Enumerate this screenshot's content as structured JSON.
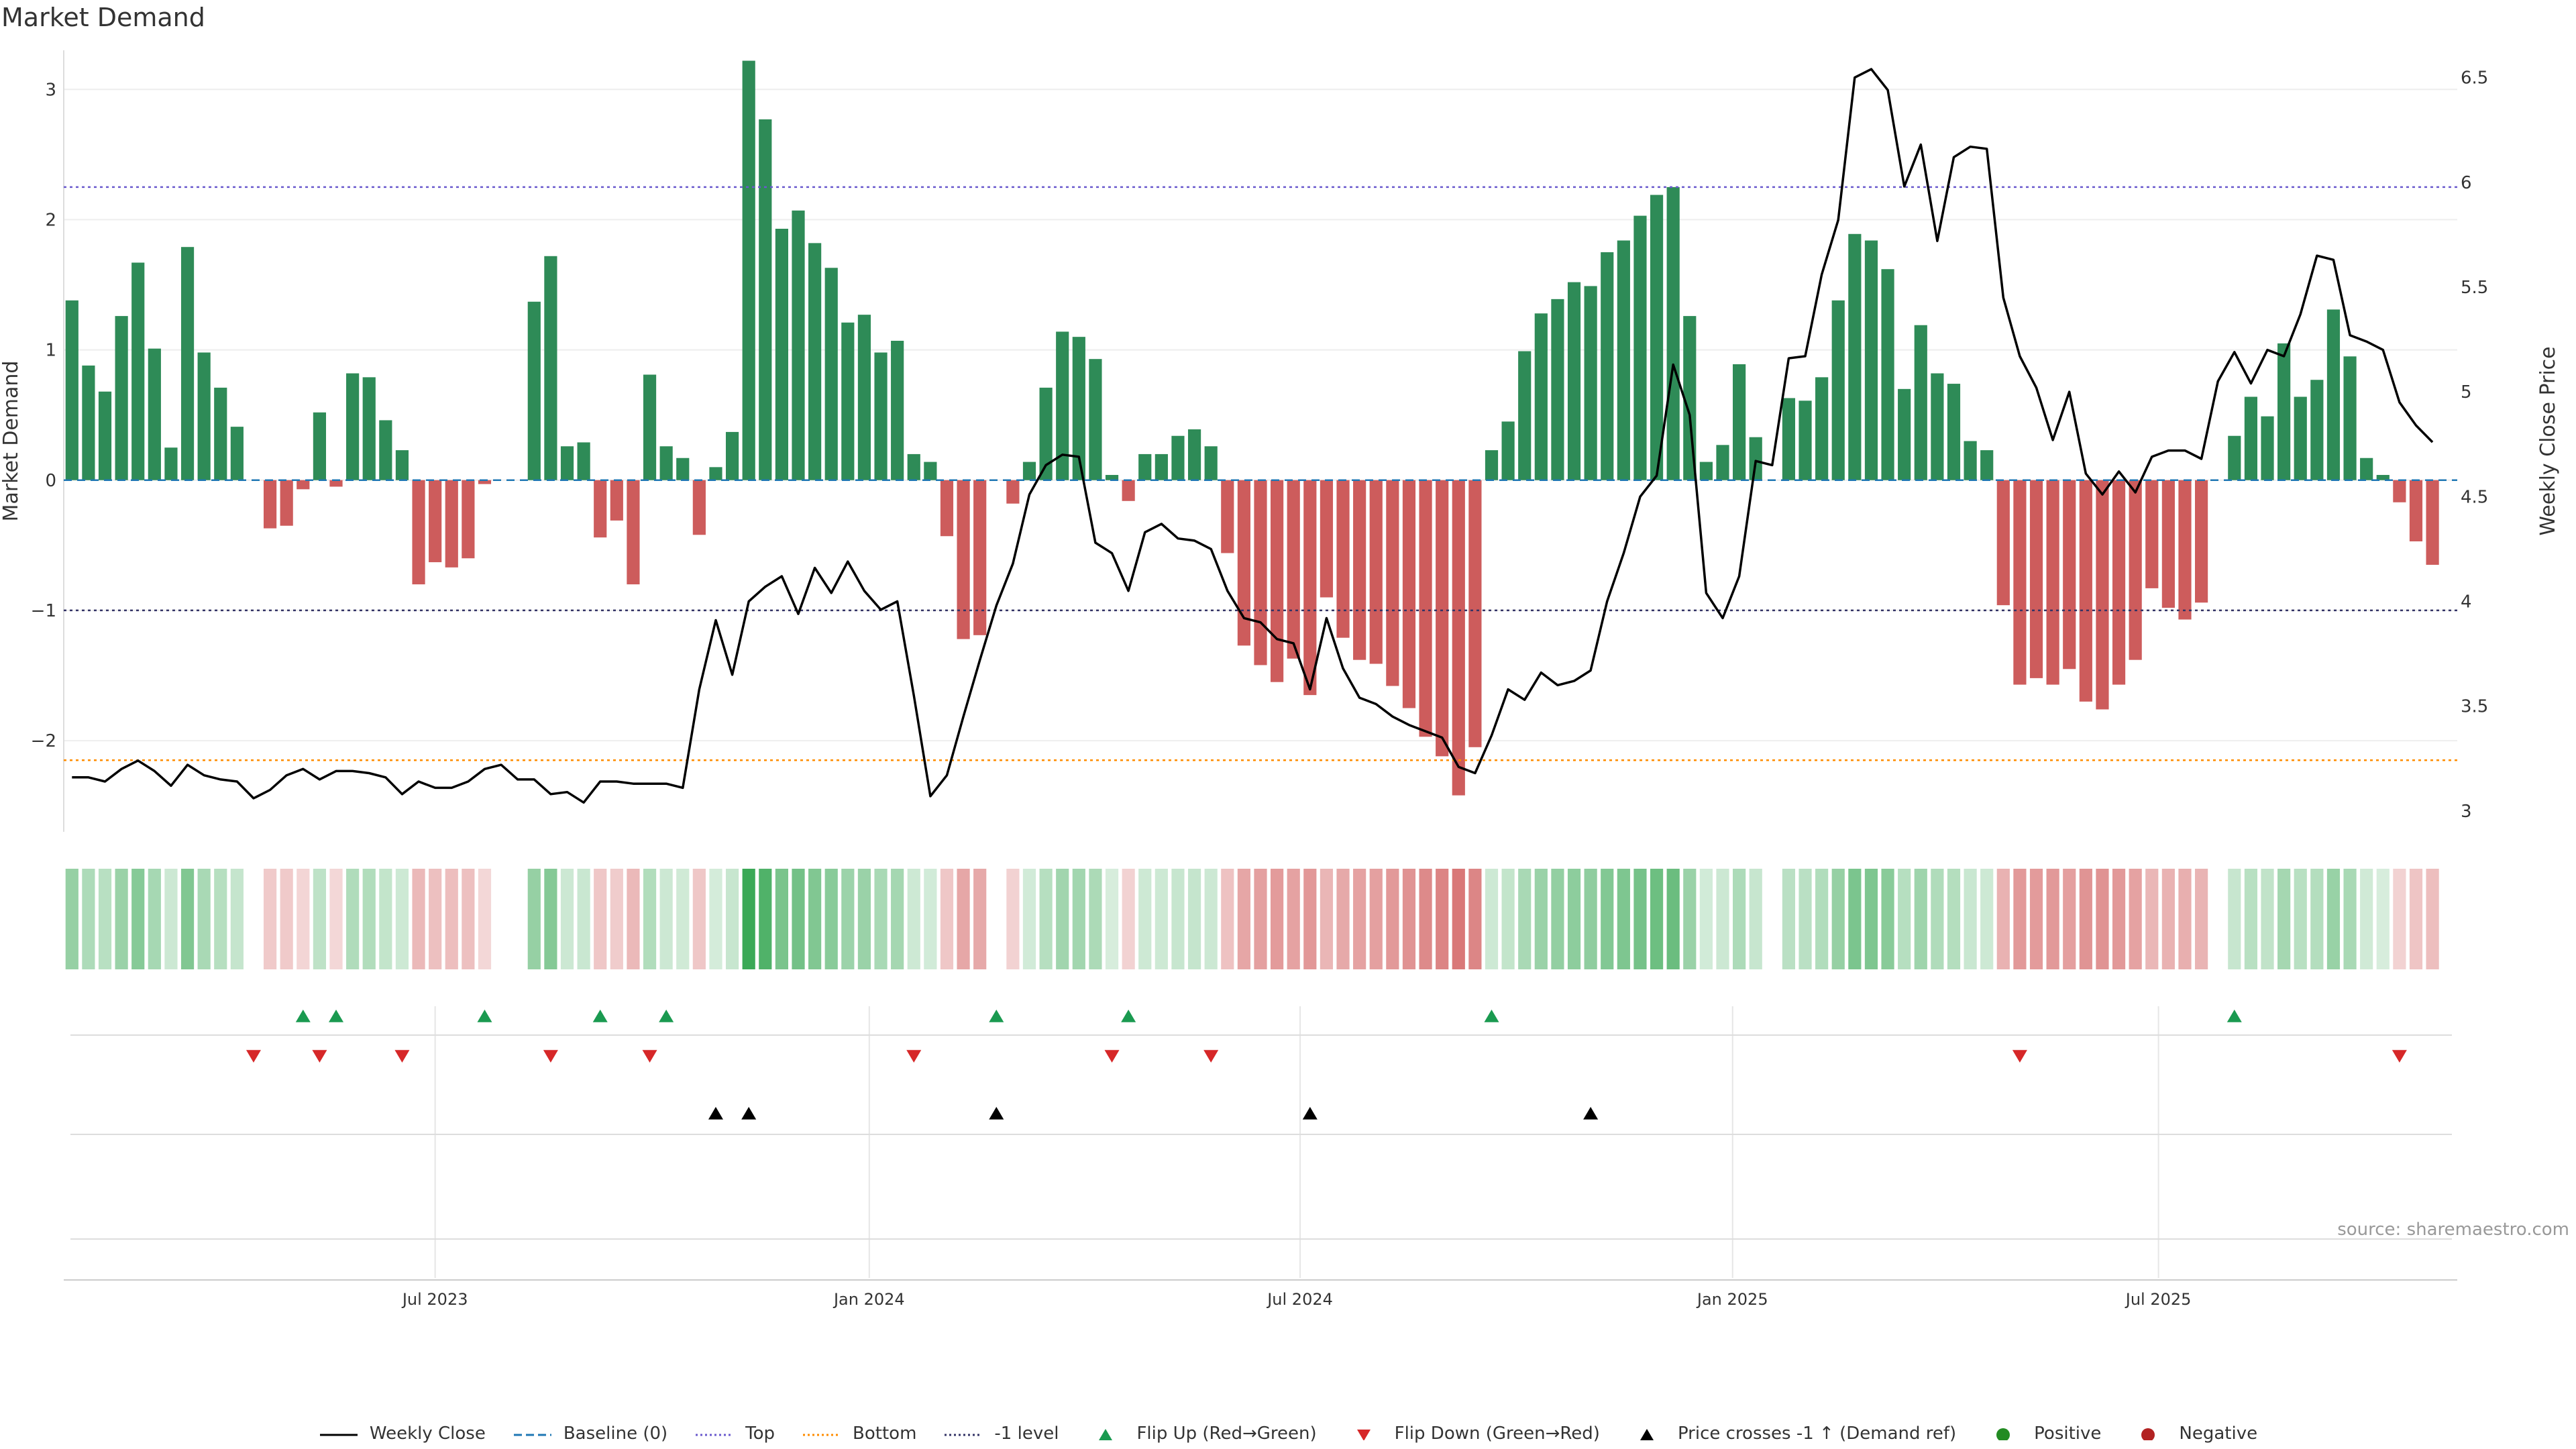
{
  "title": "Market Demand",
  "source": "source: sharemaestro.com",
  "colors": {
    "positive": "#2e8b57",
    "negative": "#cd5c5c",
    "price": "#000000",
    "top": "#6a5acd",
    "bottom": "#ff8c00",
    "minus1": "#333366",
    "flip_up": "#1a9a50",
    "flip_down": "#d62728",
    "cross": "#000000",
    "positive_dot": "#228b22",
    "negative_dot": "#b22222"
  },
  "legend": [
    {
      "label": "Weekly Close",
      "kind": "line-solid",
      "color": "#000000"
    },
    {
      "label": "Baseline (0)",
      "kind": "line-dashed",
      "color": "#1f77b4"
    },
    {
      "label": "Top",
      "kind": "line-dotted",
      "color": "#6a5acd"
    },
    {
      "label": "Bottom",
      "kind": "line-dotted",
      "color": "#ff8c00"
    },
    {
      "label": "-1 level",
      "kind": "line-dotted",
      "color": "#333366"
    },
    {
      "label": "Flip Up (Red→Green)",
      "kind": "tri-up",
      "color": "#1a9a50"
    },
    {
      "label": "Flip Down (Green→Red)",
      "kind": "tri-down",
      "color": "#d62728"
    },
    {
      "label": "Price crosses -1 ↑ (Demand ref)",
      "kind": "tri-up",
      "color": "#000000"
    },
    {
      "label": "Positive",
      "kind": "dot",
      "color": "#228b22"
    },
    {
      "label": "Negative",
      "kind": "dot",
      "color": "#b22222"
    }
  ],
  "chart_data": {
    "type": "bar",
    "title": "Market Demand",
    "ylabel": "Market Demand",
    "y2label": "Weekly Close Price",
    "ylim": [
      -2.7,
      3.3
    ],
    "y2lim": [
      2.9,
      6.63
    ],
    "yticks": [
      -2,
      -1,
      0,
      1,
      2,
      3
    ],
    "ytick_labels": [
      "−2",
      "−1",
      "0",
      "1",
      "2",
      "3"
    ],
    "y2ticks": [
      3,
      3.5,
      4,
      4.5,
      5,
      5.5,
      6,
      6.5
    ],
    "y2tick_labels": [
      "3",
      "3.5",
      "4",
      "4.5",
      "5",
      "5.5",
      "6",
      "6.5"
    ],
    "x_start_week": 0,
    "x_end_week": 144,
    "x_ticks": [
      {
        "label": "Jul 2023",
        "week": 22
      },
      {
        "label": "Jan 2024",
        "week": 48.3
      },
      {
        "label": "Jul 2024",
        "week": 74.4
      },
      {
        "label": "Jan 2025",
        "week": 100.6
      },
      {
        "label": "Jul 2025",
        "week": 126.4
      }
    ],
    "reference_lines": {
      "top": 2.25,
      "bottom": -2.15,
      "minus_one": -1,
      "baseline": 0
    },
    "demand": [
      1.38,
      0.88,
      0.68,
      1.26,
      1.67,
      1.01,
      0.25,
      1.79,
      0.98,
      0.71,
      0.41,
      0,
      -0.37,
      -0.35,
      -0.07,
      0.52,
      -0.05,
      0.82,
      0.79,
      0.46,
      0.23,
      -0.8,
      -0.63,
      -0.67,
      -0.6,
      -0.03,
      0,
      0,
      1.37,
      1.72,
      0.26,
      0.29,
      -0.44,
      -0.31,
      -0.8,
      0.81,
      0.26,
      0.17,
      -0.42,
      0.1,
      0.37,
      3.22,
      2.77,
      1.93,
      2.07,
      1.82,
      1.63,
      1.21,
      1.27,
      0.98,
      1.07,
      0.2,
      0.14,
      -0.43,
      -1.22,
      -1.19,
      0,
      -0.18,
      0.14,
      0.71,
      1.14,
      1.1,
      0.93,
      0.04,
      -0.16,
      0.2,
      0.2,
      0.34,
      0.39,
      0.26,
      -0.56,
      -1.27,
      -1.42,
      -1.55,
      -1.37,
      -1.65,
      -0.9,
      -1.21,
      -1.38,
      -1.41,
      -1.58,
      -1.75,
      -1.97,
      -2.12,
      -2.42,
      -2.05,
      0.23,
      0.45,
      0.99,
      1.28,
      1.39,
      1.52,
      1.49,
      1.75,
      1.84,
      2.03,
      2.19,
      2.25,
      1.26,
      0.14,
      0.27,
      0.89,
      0.33,
      0,
      0.63,
      0.61,
      0.79,
      1.38,
      1.89,
      1.84,
      1.62,
      0.7,
      1.19,
      0.82,
      0.74,
      0.3,
      0.23,
      -0.96,
      -1.57,
      -1.52,
      -1.57,
      -1.45,
      -1.7,
      -1.76,
      -1.57,
      -1.38,
      -0.83,
      -0.98,
      -1.07,
      -0.94,
      0,
      0.34,
      0.64,
      0.49,
      1.05,
      0.64,
      0.77,
      1.31,
      0.95,
      0.17,
      0.04,
      -0.17,
      -0.47,
      -0.65
    ],
    "price": [
      3.16,
      3.16,
      3.14,
      3.2,
      3.24,
      3.19,
      3.12,
      3.22,
      3.17,
      3.15,
      3.14,
      3.06,
      3.1,
      3.17,
      3.2,
      3.15,
      3.19,
      3.19,
      3.18,
      3.16,
      3.08,
      3.14,
      3.11,
      3.11,
      3.14,
      3.2,
      3.22,
      3.15,
      3.15,
      3.08,
      3.09,
      3.04,
      3.14,
      3.14,
      3.13,
      3.13,
      3.13,
      3.11,
      3.58,
      3.91,
      3.65,
      4.0,
      4.07,
      4.12,
      3.94,
      4.16,
      4.04,
      4.19,
      4.05,
      3.96,
      4.0,
      3.55,
      3.07,
      3.17,
      3.45,
      3.72,
      3.98,
      4.18,
      4.51,
      4.65,
      4.7,
      4.69,
      4.28,
      4.23,
      4.05,
      4.33,
      4.37,
      4.3,
      4.29,
      4.25,
      4.05,
      3.92,
      3.9,
      3.82,
      3.8,
      3.58,
      3.92,
      3.68,
      3.54,
      3.51,
      3.45,
      3.41,
      3.38,
      3.35,
      3.21,
      3.18,
      3.36,
      3.58,
      3.53,
      3.66,
      3.6,
      3.62,
      3.67,
      4.0,
      4.23,
      4.5,
      4.6,
      5.13,
      4.89,
      4.04,
      3.92,
      4.12,
      4.67,
      4.65,
      5.16,
      5.17,
      5.56,
      5.82,
      6.5,
      6.54,
      6.44,
      5.98,
      6.18,
      5.72,
      6.12,
      6.17,
      6.16,
      5.45,
      5.17,
      5.02,
      4.77,
      5.0,
      4.61,
      4.51,
      4.62,
      4.52,
      4.69,
      4.72,
      4.72,
      4.68,
      5.05,
      5.19,
      5.04,
      5.2,
      5.17,
      5.37,
      5.65,
      5.63,
      5.27,
      5.24,
      5.2,
      4.95,
      4.84,
      4.76
    ],
    "flip_up_weeks": [
      14,
      16,
      25,
      32,
      36,
      56,
      64,
      86,
      131
    ],
    "flip_down_weeks": [
      11,
      15,
      20,
      29,
      35,
      51,
      63,
      69,
      118,
      141
    ],
    "price_cross_weeks": [
      39,
      41,
      56,
      75,
      92
    ]
  }
}
